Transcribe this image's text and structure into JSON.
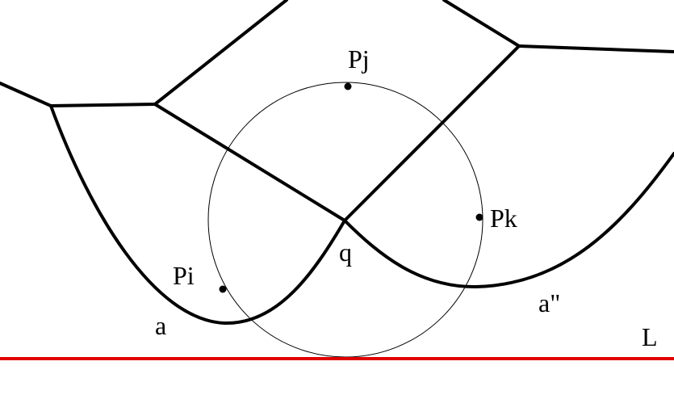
{
  "points": {
    "pi": "Pi",
    "pj": "Pj",
    "pk": "Pk"
  },
  "vertex": "q",
  "arcs": {
    "left": "a",
    "right": "a\""
  },
  "sweep_line": "L",
  "colors": {
    "edges": "#000000",
    "circle": "#000000",
    "sweep_line": "#e00000",
    "background": "#ffffff"
  }
}
